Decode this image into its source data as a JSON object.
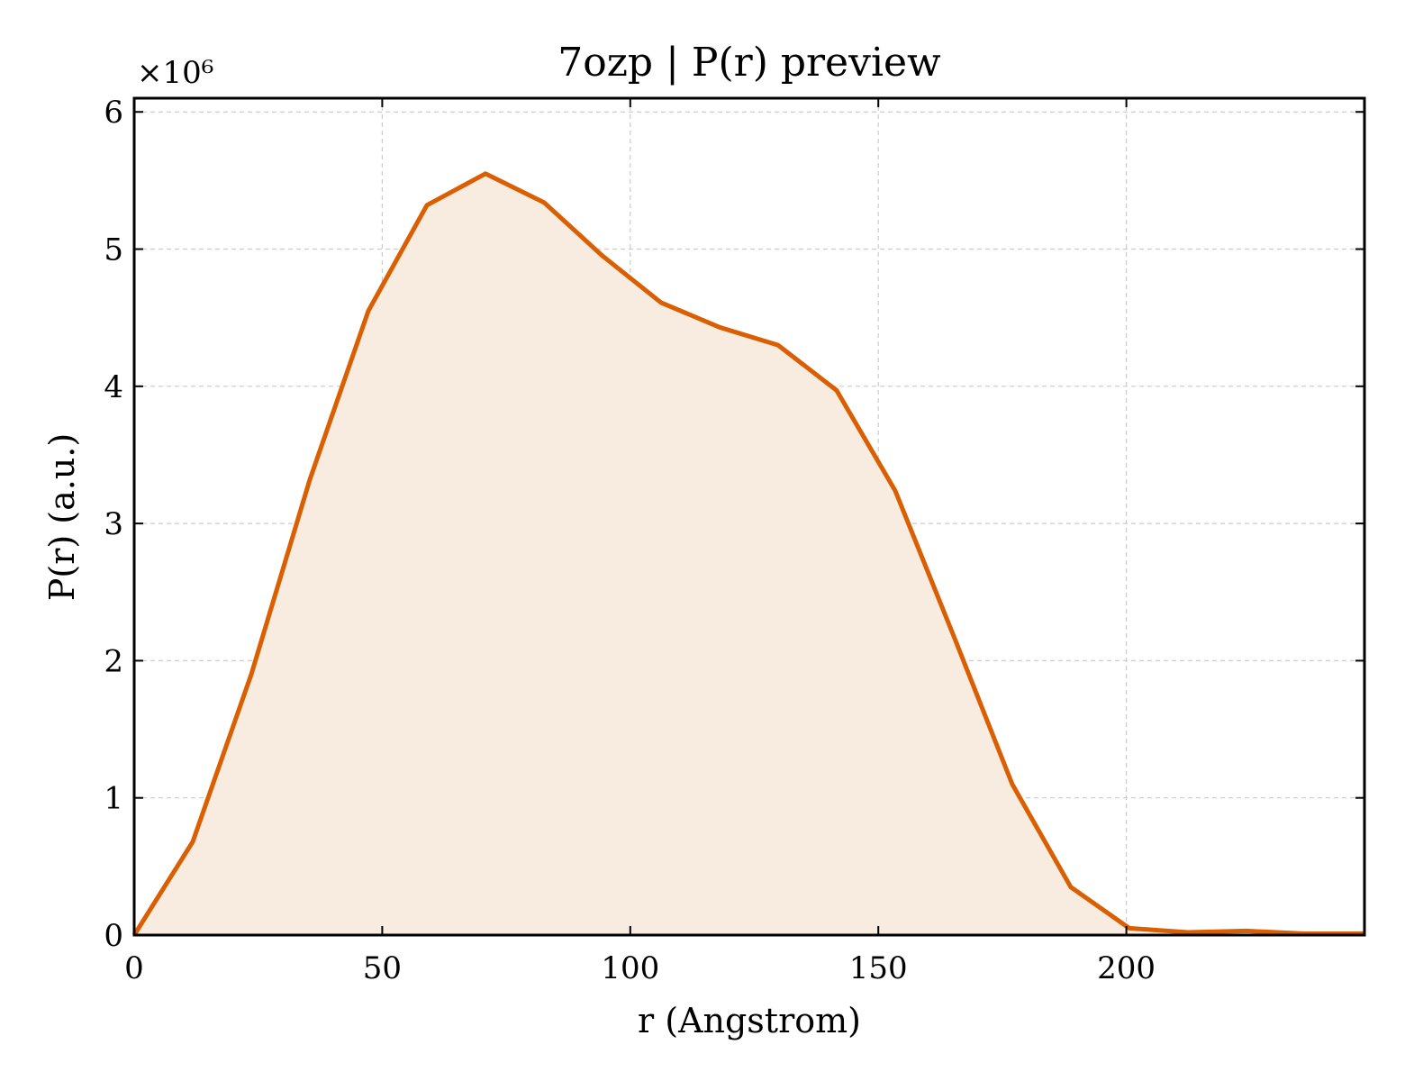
{
  "chart_data": {
    "type": "area",
    "title": "7ozp | P(r) preview",
    "xlabel": "r (Angstrom)",
    "ylabel": "P(r) (a.u.)",
    "y_multiplier": "×10⁶",
    "xlim": [
      0,
      248
    ],
    "ylim": [
      0,
      6.1
    ],
    "x_ticks": [
      0,
      50,
      100,
      150,
      200
    ],
    "y_ticks": [
      0,
      1,
      2,
      3,
      4,
      5,
      6
    ],
    "grid": true,
    "series": [
      {
        "x": [
          0,
          11.8,
          23.6,
          35.4,
          47.2,
          59.0,
          70.8,
          82.6,
          94.4,
          106.2,
          118.0,
          129.8,
          141.6,
          153.4,
          165.2,
          177.0,
          188.8,
          200.6,
          212.4,
          224.2,
          236.0,
          248.0
        ],
        "values": [
          0,
          0.68,
          1.9,
          3.32,
          4.55,
          5.32,
          5.55,
          5.34,
          4.95,
          4.61,
          4.43,
          4.3,
          3.97,
          3.24,
          2.18,
          1.1,
          0.35,
          0.05,
          0.02,
          0.03,
          0.01,
          0.01
        ]
      }
    ],
    "colors": {
      "line": "#d95f02",
      "fill": "#f8ebe0",
      "grid": "#cccccc",
      "axis": "#000000"
    }
  }
}
